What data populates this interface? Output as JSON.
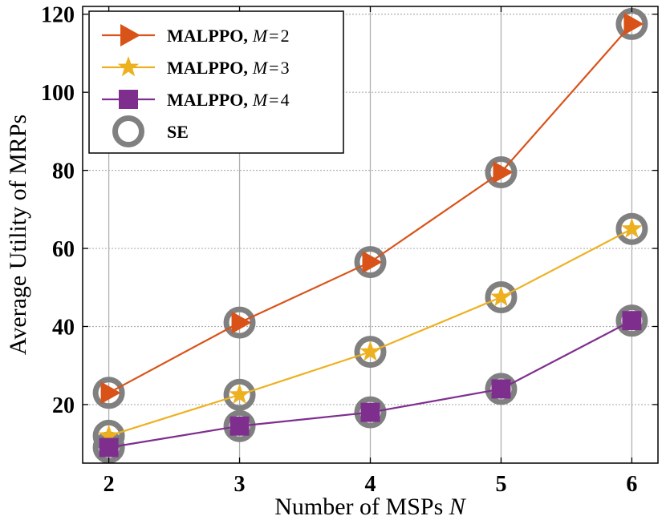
{
  "chart_data": {
    "type": "line",
    "xlabel_text": "Number of MSPs",
    "xlabel_var": "N",
    "ylabel": "Average Utility of MRPs",
    "x": [
      2,
      3,
      4,
      5,
      6
    ],
    "xlim": [
      1.8,
      6.2
    ],
    "ylim": [
      5,
      122
    ],
    "xticks": [
      2,
      3,
      4,
      5,
      6
    ],
    "yticks": [
      20,
      40,
      60,
      80,
      100,
      120
    ],
    "grid": true,
    "legend_position": "top-left",
    "series": [
      {
        "name": "MALPPO, M = 2",
        "label_bold": "MALPPO,",
        "label_var": "M",
        "label_op": "=",
        "label_num": "2",
        "color": "#d95319",
        "marker": "triangle-right",
        "values": [
          23,
          41,
          56.5,
          79.5,
          117.5
        ]
      },
      {
        "name": "MALPPO, M = 3",
        "label_bold": "MALPPO,",
        "label_var": "M",
        "label_op": "=",
        "label_num": "3",
        "color": "#edb120",
        "marker": "star",
        "values": [
          12,
          22.5,
          33.5,
          47.5,
          65
        ]
      },
      {
        "name": "MALPPO, M = 4",
        "label_bold": "MALPPO,",
        "label_var": "M",
        "label_op": "=",
        "label_num": "4",
        "color": "#7e2f8e",
        "marker": "square",
        "values": [
          9,
          14.5,
          18,
          24,
          41.5
        ]
      },
      {
        "name": "SE",
        "label_bold": "SE",
        "color": "#808080",
        "marker": "circle",
        "values": [
          12,
          22.5,
          56.5,
          47.5,
          65
        ],
        "points": [
          [
            2,
            23
          ],
          [
            2,
            12
          ],
          [
            2,
            9
          ],
          [
            3,
            41
          ],
          [
            3,
            22.5
          ],
          [
            3,
            14.5
          ],
          [
            4,
            56.5
          ],
          [
            4,
            33.5
          ],
          [
            4,
            18
          ],
          [
            5,
            79.5
          ],
          [
            5,
            47.5
          ],
          [
            5,
            24
          ],
          [
            6,
            117.5
          ],
          [
            6,
            65
          ],
          [
            6,
            41.5
          ]
        ]
      }
    ]
  }
}
